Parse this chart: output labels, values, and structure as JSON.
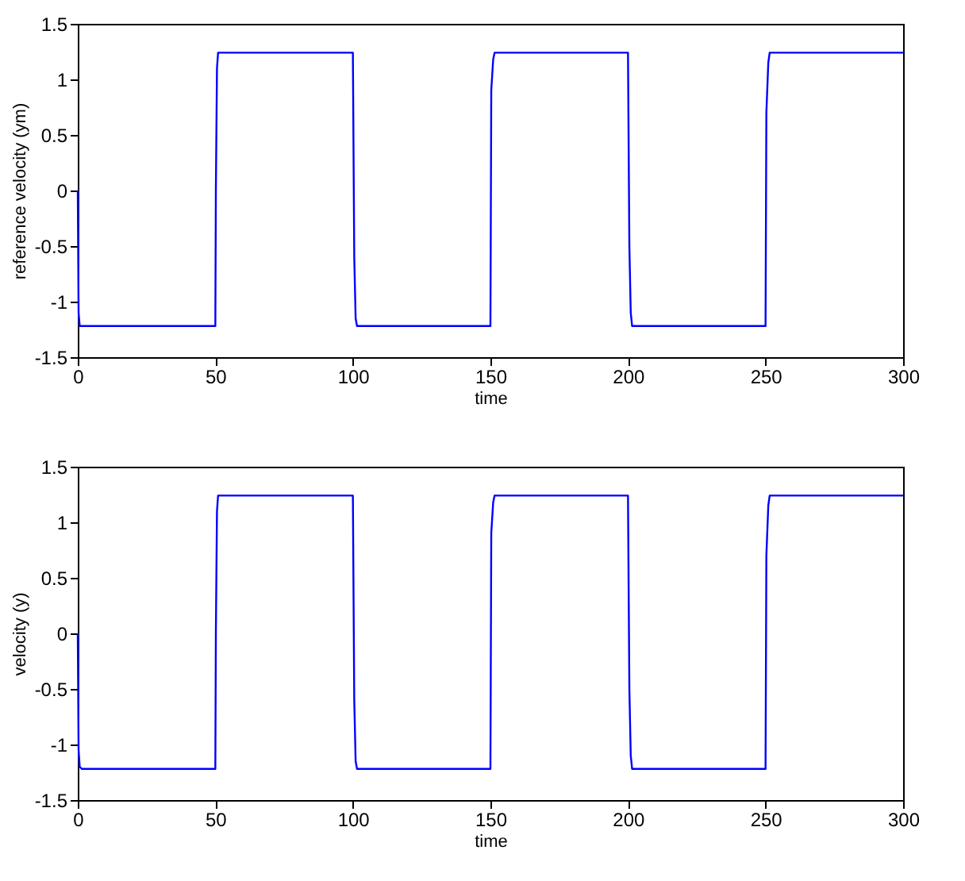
{
  "chart_data": [
    {
      "type": "line",
      "xlabel": "time",
      "ylabel": "reference velocity (ym)",
      "xlim": [
        0,
        300
      ],
      "xticks": [
        0,
        50,
        100,
        150,
        200,
        250,
        300
      ],
      "ylim": [
        -1.5,
        1.5
      ],
      "yticks": [
        -1.5,
        -1,
        -0.5,
        0,
        0.5,
        1,
        1.5
      ],
      "grid": false,
      "marker": "none",
      "line_style": "solid",
      "series": [
        {
          "color": "#0000ff",
          "x": [
            0,
            0.3,
            0.7,
            50,
            50.2,
            50.6,
            51,
            100,
            100.5,
            101,
            101.5,
            150,
            150.3,
            151,
            151.5,
            200,
            200.5,
            201,
            201.5,
            250,
            250.3,
            251,
            251.5,
            300
          ],
          "values": [
            0,
            -1.1,
            -1.22,
            -1.22,
            0,
            1.1,
            1.24,
            1.24,
            -0.6,
            -1.15,
            -1.22,
            -1.22,
            0.9,
            1.18,
            1.24,
            1.24,
            -0.5,
            -1.1,
            -1.22,
            -1.22,
            0.7,
            1.15,
            1.24,
            1.24
          ]
        }
      ]
    },
    {
      "type": "line",
      "xlabel": "time",
      "ylabel": "velocity (y)",
      "xlim": [
        0,
        300
      ],
      "xticks": [
        0,
        50,
        100,
        150,
        200,
        250,
        300
      ],
      "ylim": [
        -1.5,
        1.5
      ],
      "yticks": [
        -1.5,
        -1,
        -0.5,
        0,
        0.5,
        1,
        1.5
      ],
      "grid": false,
      "marker": "none",
      "line_style": "solid",
      "series": [
        {
          "color": "#0000ff",
          "x": [
            0,
            0.3,
            0.7,
            1.5,
            50,
            50.2,
            50.6,
            51,
            100,
            100.5,
            101,
            101.5,
            150,
            150.3,
            151,
            151.5,
            200,
            200.5,
            201,
            201.5,
            250,
            250.3,
            251,
            251.5,
            300
          ],
          "values": [
            0,
            -1.05,
            -1.2,
            -1.22,
            -1.22,
            0,
            1.1,
            1.24,
            1.24,
            -0.6,
            -1.15,
            -1.22,
            -1.22,
            0.9,
            1.18,
            1.24,
            1.24,
            -0.5,
            -1.1,
            -1.22,
            -1.22,
            0.7,
            1.15,
            1.24,
            1.24
          ]
        }
      ]
    }
  ]
}
